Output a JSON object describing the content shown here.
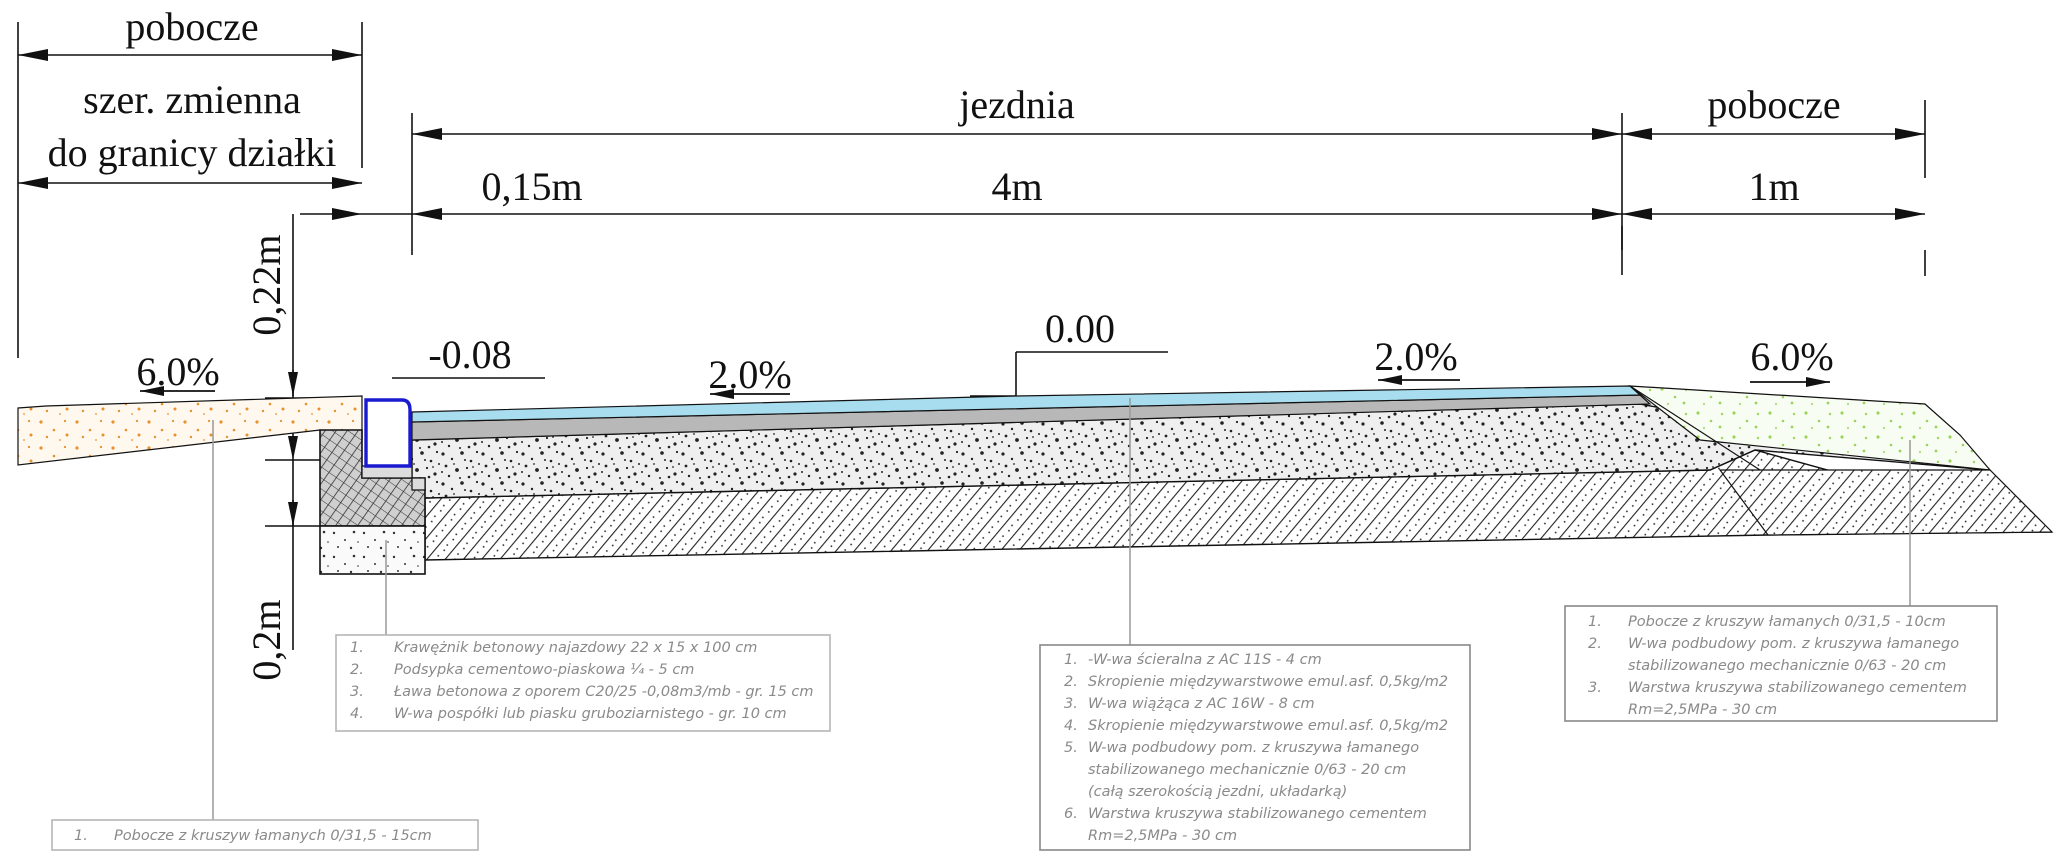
{
  "dimensions": {
    "left_shoulder": "pobocze",
    "left_width_line1": "szer. zmienna",
    "left_width_line2": "do granicy działki",
    "carriageway": "jezdnia",
    "right_shoulder": "pobocze",
    "curb_width": "0,15m",
    "carriageway_width": "4m",
    "right_shoulder_width": "1m",
    "curb_height": "0,22m",
    "bench_height": "0,2m"
  },
  "levels": {
    "curb_level": "-0.08",
    "axis_level": "0.00"
  },
  "slopes": {
    "left_shoulder": "6.0%",
    "carriageway_left": "2.0%",
    "carriageway_right": "2.0%",
    "right_shoulder": "6.0%"
  },
  "notes": {
    "curb": [
      {
        "num": "1.",
        "text": "Krawężnik betonowy najazdowy 22 x 15 x 100 cm"
      },
      {
        "num": "2.",
        "text": "Podsypka cementowo-piaskowa ¼ - 5 cm"
      },
      {
        "num": "3.",
        "text": "Ława betonowa z oporem C20/25 -0,08m3/mb - gr. 15 cm"
      },
      {
        "num": "4.",
        "text": "W-wa pospółki lub piasku gruboziarnistego - gr. 10 cm"
      }
    ],
    "left_shoulder": [
      {
        "num": "1.",
        "text": "Pobocze z kruszyw łamanych 0/31,5 - 15cm"
      }
    ],
    "pavement": [
      {
        "num": "1.",
        "text": "-W-wa ścieralna z AC 11S - 4 cm"
      },
      {
        "num": "2.",
        "text": "Skropienie międzywarstwowe emul.asf. 0,5kg/m2"
      },
      {
        "num": "3.",
        "text": "W-wa wiążąca z AC 16W - 8 cm"
      },
      {
        "num": "4.",
        "text": "Skropienie międzywarstwowe emul.asf. 0,5kg/m2"
      },
      {
        "num": "5.",
        "text": "W-wa podbudowy pom. z kruszywa łamanego"
      },
      {
        "num": "",
        "text": "stabilizowanego mechanicznie 0/63 - 20 cm"
      },
      {
        "num": "",
        "text": "(całą szerokością jezdni, układarką)"
      },
      {
        "num": "6.",
        "text": "Warstwa kruszywa stabilizowanego cementem"
      },
      {
        "num": "",
        "text": "Rm=2,5MPa - 30 cm"
      }
    ],
    "right_shoulder": [
      {
        "num": "1.",
        "text": "Pobocze z kruszyw łamanych 0/31,5 - 10cm"
      },
      {
        "num": "2.",
        "text": "W-wa podbudowy pom. z kruszywa łamanego"
      },
      {
        "num": "",
        "text": "stabilizowanego mechanicznie 0/63 - 20 cm"
      },
      {
        "num": "3.",
        "text": "Warstwa kruszywa stabilizowanego cementem"
      },
      {
        "num": "",
        "text": "Rm=2,5MPa - 30 cm"
      }
    ]
  },
  "colors": {
    "wearing_course": "#a8dcef",
    "binder_course": "#b8b8b8",
    "curb_outline": "#1a1ad0",
    "left_shoulder_dots": "#e8912a",
    "right_shoulder_dots": "#9bd45a",
    "note_text": "#8a8a8a",
    "line": "#111111"
  }
}
